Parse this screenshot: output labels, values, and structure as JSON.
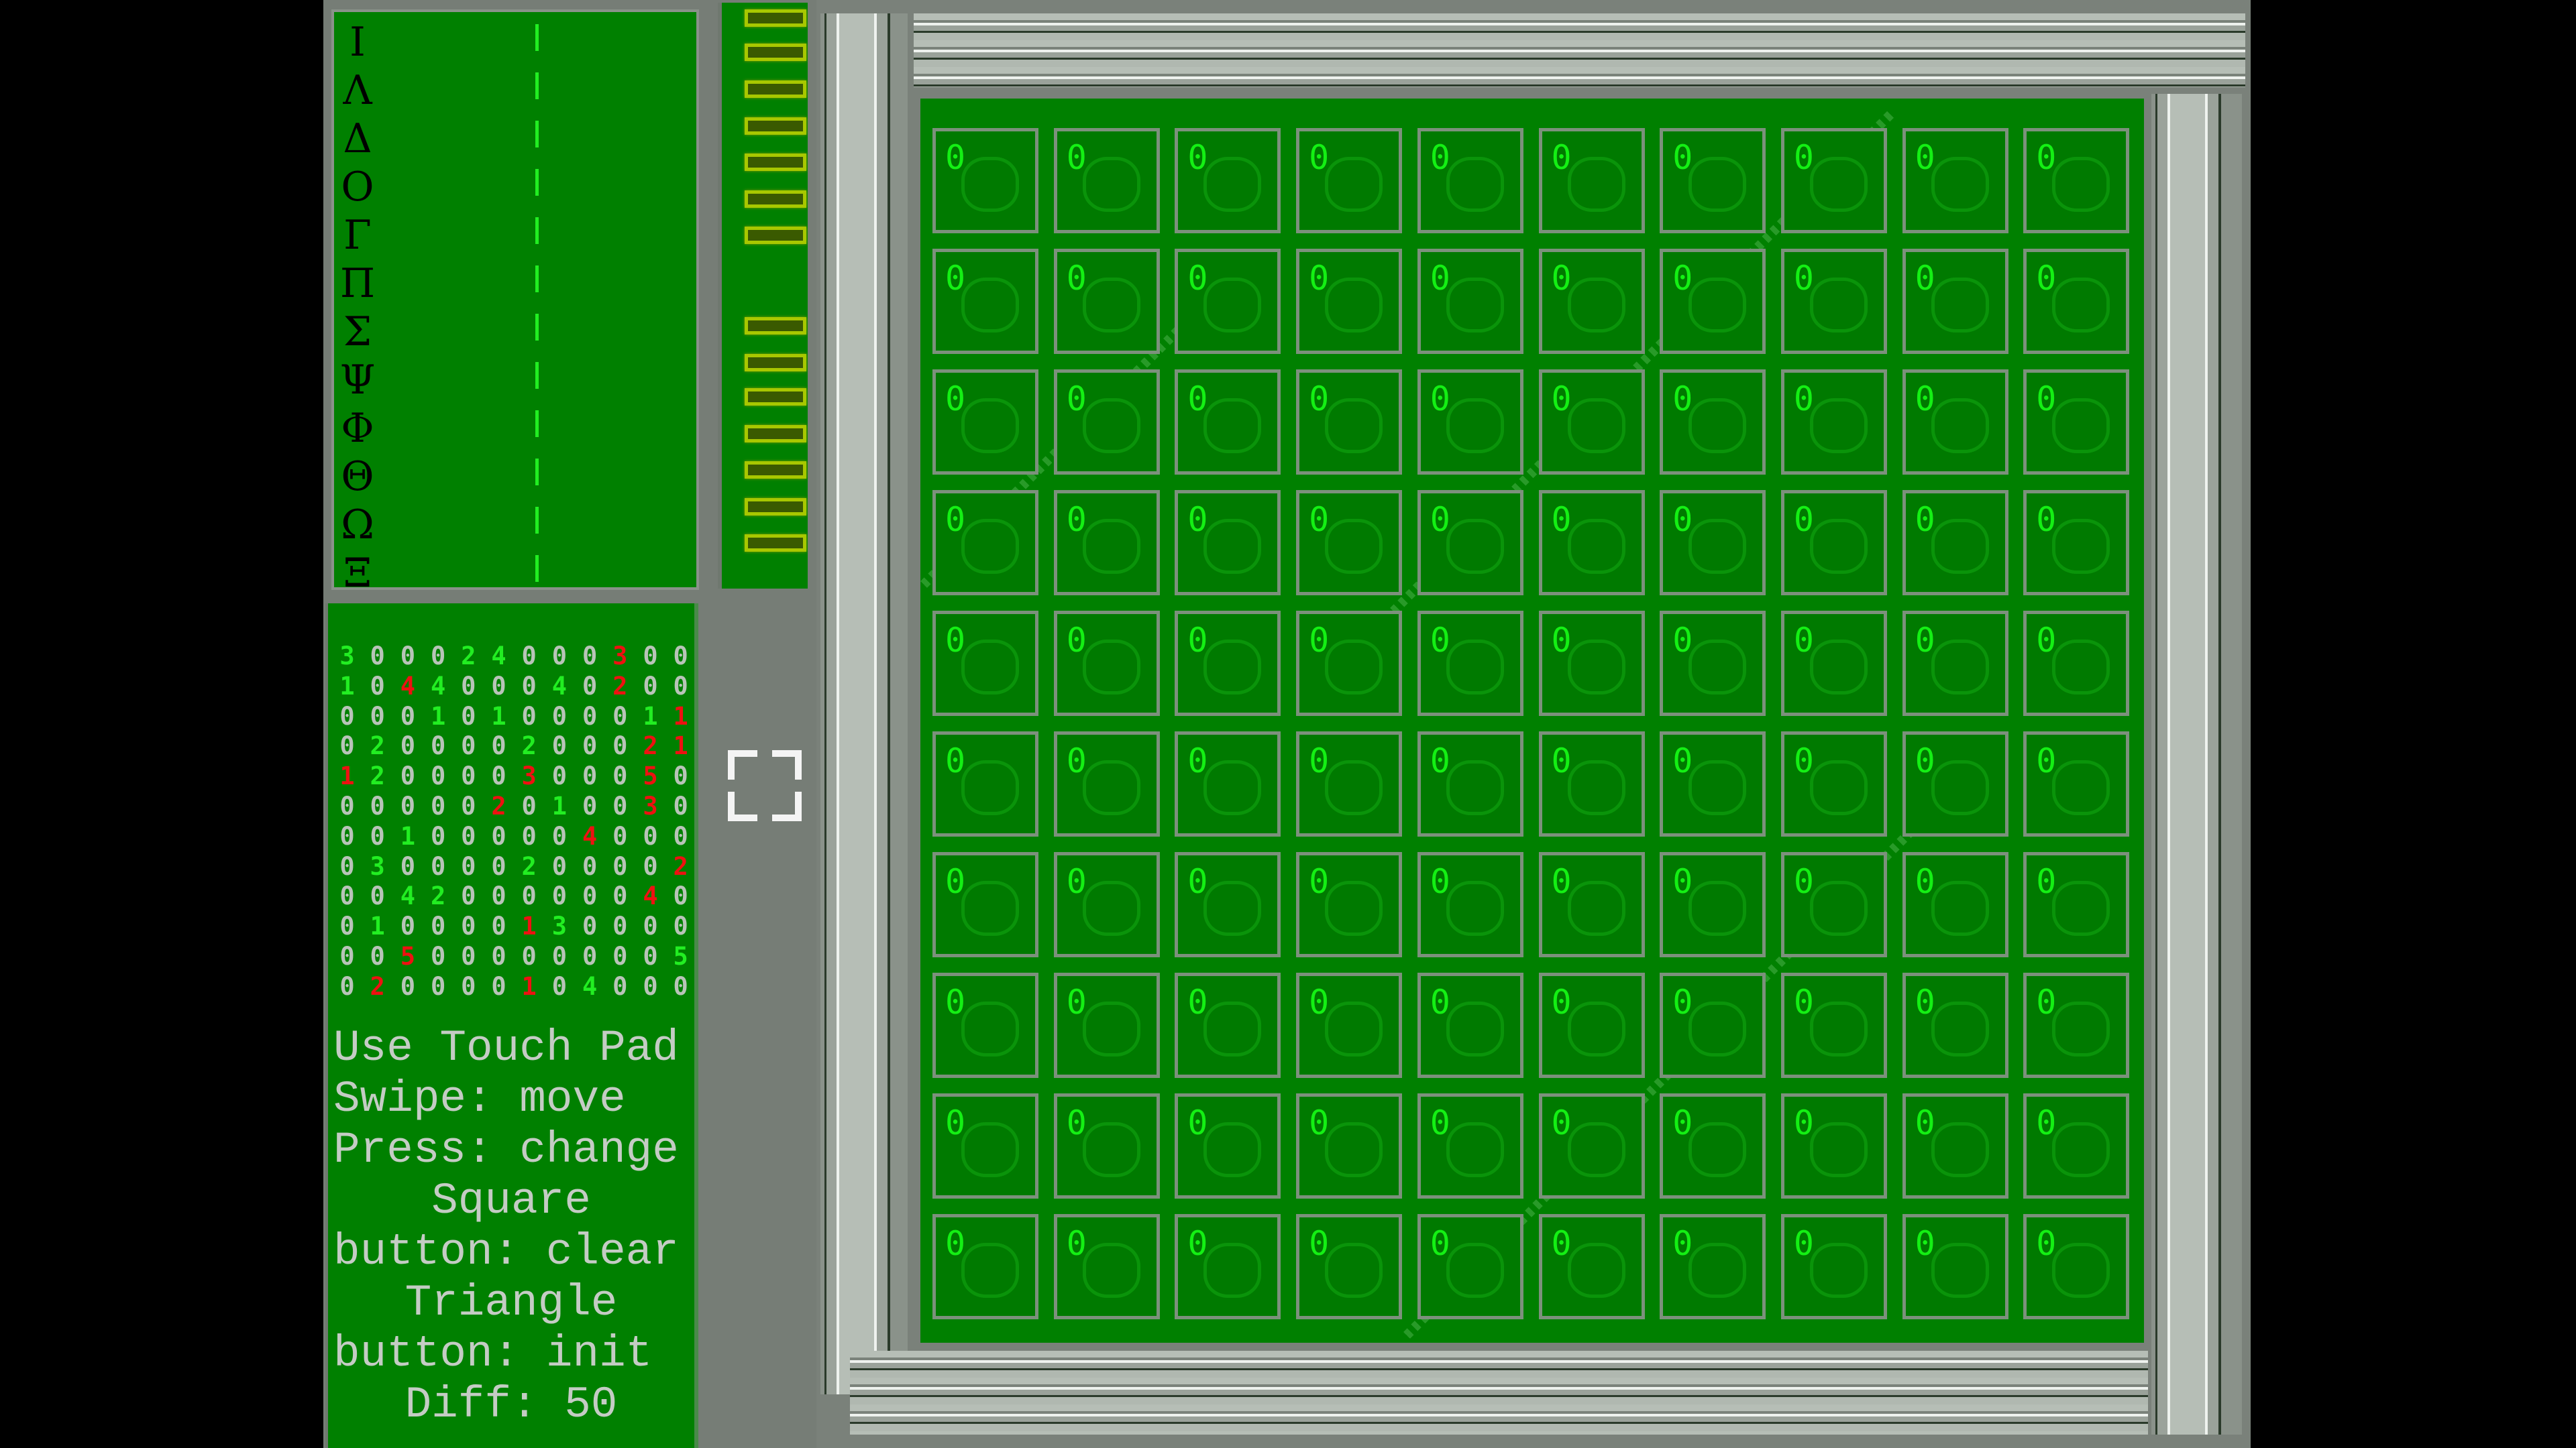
{
  "greek_panel": {
    "letters": [
      "Ι",
      "Λ",
      "Δ",
      "Ο",
      "Γ",
      "Π",
      "Σ",
      "Ψ",
      "Φ",
      "Θ",
      "Ω",
      "Ξ"
    ]
  },
  "number_grid": {
    "values": [
      "300024000300",
      "104400040200",
      "000101000011",
      "020000200021",
      "120000300050",
      "000002010030",
      "001000004000",
      "030000200002",
      "004200000040",
      "010000130000",
      "005000000005",
      "020000104000"
    ],
    "colors_key": {
      "g": "#22ee22",
      "r": "#ee1111",
      "n": "#b8c4b8"
    },
    "colors": [
      "gnnnggnnnrnn",
      "gnrgnnngnrnn",
      "nnngngnnnngr",
      "ngnnnngnnnrr",
      "rgnnnnrnnnrn",
      "nnnnnrngnnrn",
      "nngnnnnnrnnn",
      "ngnnnngnnnnr",
      "nnggnnnnnnrn",
      "ngnnnnrgnnnn",
      "nnrnnnnnnnng",
      "nrnnnnrngnnn"
    ]
  },
  "instructions": {
    "lines": [
      "Use Touch Pad",
      "Swipe: move",
      "Press: change",
      "Square",
      "button: clear",
      "Triangle",
      "button: init",
      "Diff: 50"
    ]
  },
  "board": {
    "rows": [
      [
        "0",
        "0",
        "0",
        "0",
        "0",
        "0",
        "0",
        "0",
        "0",
        "0"
      ],
      [
        "0",
        "0",
        "0",
        "0",
        "0",
        "0",
        "0",
        "0",
        "0",
        "0"
      ],
      [
        "0",
        "0",
        "0",
        "0",
        "0",
        "0",
        "0",
        "0",
        "0",
        "0"
      ],
      [
        "0",
        "0",
        "0",
        "0",
        "0",
        "0",
        "0",
        "0",
        "0",
        "0"
      ],
      [
        "0",
        "0",
        "0",
        "0",
        "0",
        "0",
        "0",
        "0",
        "0",
        "0"
      ],
      [
        "0",
        "0",
        "0",
        "0",
        "0",
        "0",
        "0",
        "0",
        "0",
        "0"
      ],
      [
        "0",
        "0",
        "0",
        "0",
        "0",
        "0",
        "0",
        "0",
        "0",
        "0"
      ],
      [
        "0",
        "0",
        "0",
        "0",
        "0",
        "0",
        "0",
        "0",
        "0",
        "0"
      ],
      [
        "0",
        "0",
        "0",
        "0",
        "0",
        "0",
        "0",
        "0",
        "0",
        "0"
      ],
      [
        "0",
        "0",
        "0",
        "0",
        "0",
        "0",
        "0",
        "0",
        "0",
        "0"
      ]
    ]
  },
  "icons": {
    "fullscreen": "fullscreen-icon"
  },
  "colors": {
    "panel_green": "#008000",
    "frame_gray": "#7a817a",
    "digit_green": "#14f014",
    "bar_yellow": "#a8c800"
  }
}
